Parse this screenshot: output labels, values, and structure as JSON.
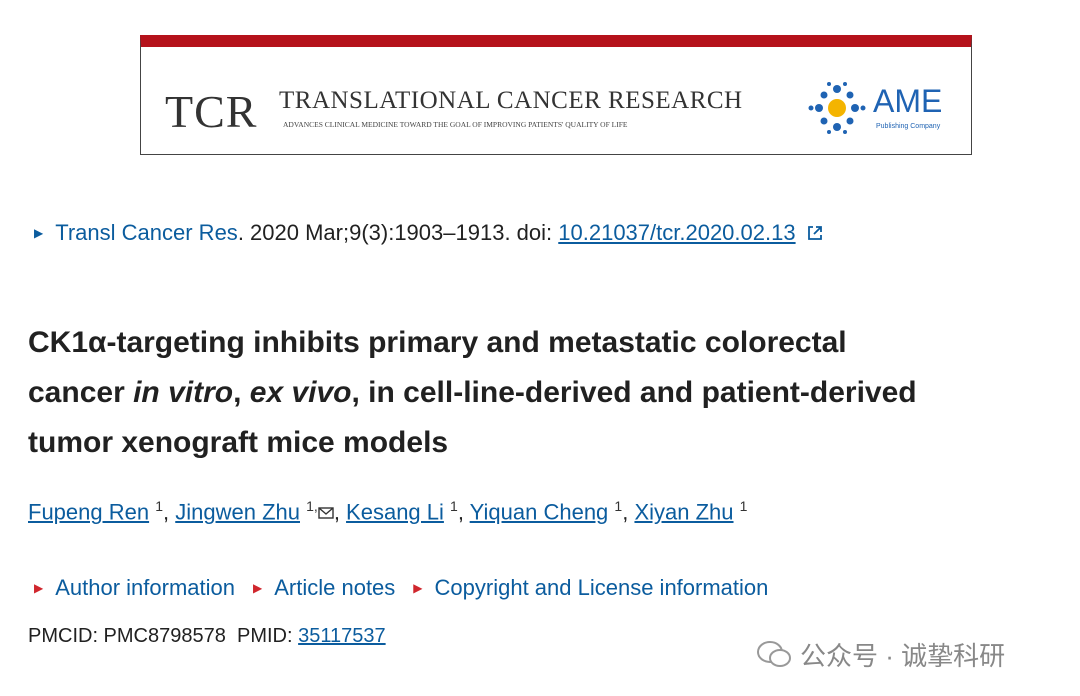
{
  "banner": {
    "logo": "TCR",
    "journal": "TRANSLATIONAL CANCER RESEARCH",
    "tagline": "ADVANCES CLINICAL MEDICINE TOWARD THE GOAL OF IMPROVING PATIENTS' QUALITY OF LIFE",
    "publisher": "AME",
    "publisher_sub": "Publishing Company"
  },
  "citation": {
    "journal": "Transl Cancer Res",
    "details": ". 2020 Mar;9(3):1903–1913. doi: ",
    "doi": "10.21037/tcr.2020.02.13"
  },
  "title": {
    "lines": [
      [
        {
          "text": "CK1α-targeting inhibits primary and metastatic colorectal",
          "italic": false
        }
      ],
      [
        {
          "text": "cancer ",
          "italic": false
        },
        {
          "text": "in vitro",
          "italic": true
        },
        {
          "text": ", ",
          "italic": false
        },
        {
          "text": "ex vivo",
          "italic": true
        },
        {
          "text": ", in cell-line-derived and patient-derived",
          "italic": false
        }
      ],
      [
        {
          "text": "tumor xenograft mice models",
          "italic": false
        }
      ]
    ]
  },
  "authors": [
    {
      "name": "Fupeng Ren",
      "sup": "1"
    },
    {
      "name": "Jingwen Zhu",
      "sup": "1,"
    },
    {
      "name": "Kesang Li",
      "sup": "1"
    },
    {
      "name": "Yiquan Cheng",
      "sup": "1"
    },
    {
      "name": "Xiyan Zhu",
      "sup": "1"
    }
  ],
  "info_links": [
    "Author information",
    "Article notes",
    "Copyright and License information"
  ],
  "ids": {
    "pmcid": "PMCID: PMC8798578",
    "pmid_label": "PMID:",
    "pmid": "35117537"
  },
  "watermark": "公众号 · 诚挚科研"
}
